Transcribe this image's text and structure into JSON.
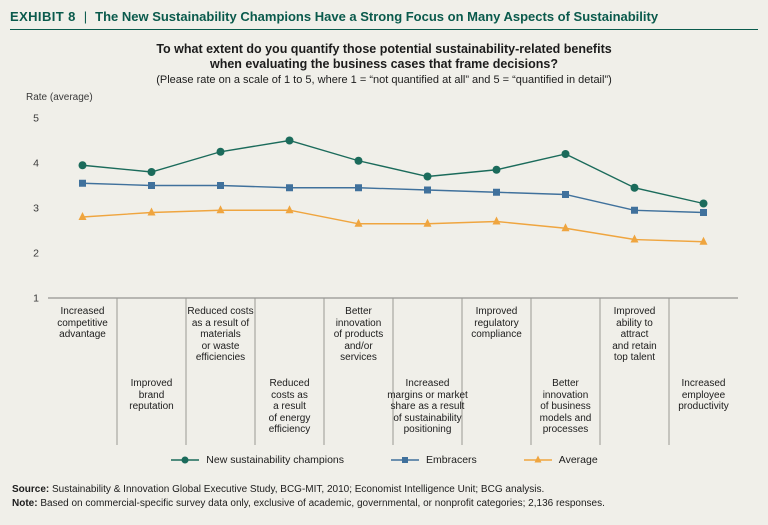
{
  "page": {
    "background": "#f0efe9"
  },
  "header": {
    "exhibit_label": "EXHIBIT 8",
    "separator": "|",
    "title": "The New Sustainability Champions Have a Strong Focus on Many Aspects of Sustainability",
    "color": "#0a5a4c"
  },
  "question": {
    "line1": "To what extent do you quantify those potential sustainability-related benefits",
    "line2": "when evaluating the business cases that frame decisions?",
    "subtitle": "(Please rate on a scale of 1 to 5, where 1 = “not quantified at all” and 5 = “quantified in detail”)"
  },
  "chart_data": {
    "type": "line",
    "title": "To what extent do you quantify those potential sustainability-related benefits when evaluating the business cases that frame decisions?",
    "ylabel": "Rate (average)",
    "xlabel": "",
    "ylim": [
      1,
      5
    ],
    "yticks": [
      5,
      4,
      3,
      2,
      1
    ],
    "grid": false,
    "legend_position": "bottom",
    "categories": [
      {
        "label": "Increased\ncompetitive\nadvantage",
        "row": "top"
      },
      {
        "label": "Improved\nbrand\nreputation",
        "row": "bottom"
      },
      {
        "label": "Reduced costs\nas a result of\nmaterials\nor waste\nefficiencies",
        "row": "top"
      },
      {
        "label": "Reduced\ncosts as\na result\nof energy\nefficiency",
        "row": "bottom"
      },
      {
        "label": "Better\ninnovation\nof products\nand/or\nservices",
        "row": "top"
      },
      {
        "label": "Increased\nmargins or market\nshare as a result\nof sustainability\npositioning",
        "row": "bottom"
      },
      {
        "label": "Improved\nregulatory\ncompliance",
        "row": "top"
      },
      {
        "label": "Better\ninnovation\nof business\nmodels and\nprocesses",
        "row": "bottom"
      },
      {
        "label": "Improved\nability to\nattract\nand retain\ntop talent",
        "row": "top"
      },
      {
        "label": "Increased\nemployee\nproductivity",
        "row": "bottom"
      }
    ],
    "series": [
      {
        "name": "New sustainability champions",
        "marker": "circle",
        "color": "#1b6b5b",
        "values": [
          3.95,
          3.8,
          4.25,
          4.5,
          4.05,
          3.7,
          3.85,
          4.2,
          3.45,
          3.1
        ]
      },
      {
        "name": "Embracers",
        "marker": "square",
        "color": "#40719c",
        "values": [
          3.55,
          3.5,
          3.5,
          3.45,
          3.45,
          3.4,
          3.35,
          3.3,
          2.95,
          2.9
        ]
      },
      {
        "name": "Average",
        "marker": "triangle",
        "color": "#efa53f",
        "values": [
          2.8,
          2.9,
          2.95,
          2.95,
          2.65,
          2.65,
          2.7,
          2.55,
          2.3,
          2.25
        ]
      }
    ]
  },
  "footer": {
    "source_label": "Source:",
    "source_text": "Sustainability & Innovation Global Executive Study, BCG-MIT, 2010; Economist Intelligence Unit; BCG analysis.",
    "note_label": "Note:",
    "note_text": "Based on commercial-specific survey data only, exclusive of academic, governmental, or nonprofit categories; 2,136 responses."
  }
}
